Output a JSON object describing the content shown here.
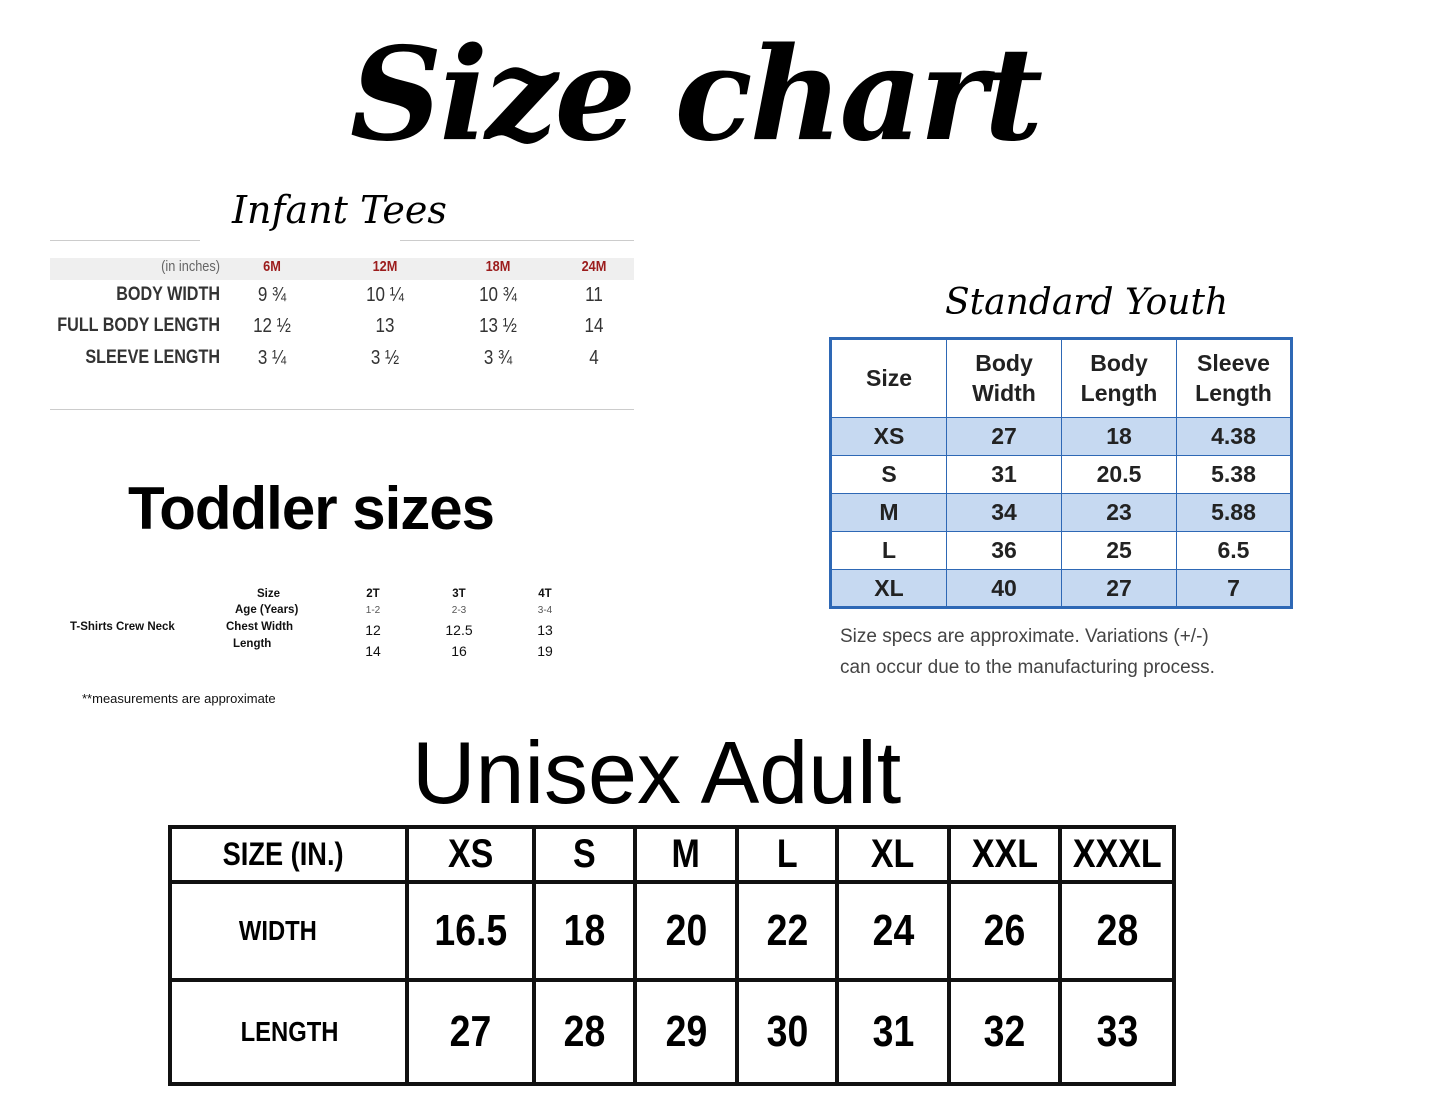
{
  "title": "Size chart",
  "infant": {
    "title": "Infant Tees",
    "unit_label": "(in inches)",
    "sizes": [
      "6M",
      "12M",
      "18M",
      "24M"
    ],
    "rows": [
      {
        "label": "BODY WIDTH",
        "values": [
          "9 ¾",
          "10 ¼",
          "10 ¾",
          "11"
        ]
      },
      {
        "label": "FULL BODY LENGTH",
        "values": [
          "12 ½",
          "13",
          "13 ½",
          "14"
        ]
      },
      {
        "label": "SLEEVE LENGTH",
        "values": [
          "3 ¼",
          "3 ½",
          "3 ¾",
          "4"
        ]
      }
    ],
    "accent": "#9b1c1c"
  },
  "toddler": {
    "title": "Toddler sizes",
    "product": "T-Shirts  Crew Neck",
    "rows": [
      {
        "label": "Size",
        "values": [
          "2T",
          "3T",
          "4T"
        ]
      },
      {
        "label": "Age (Years)",
        "values": [
          "1-2",
          "2-3",
          "3-4"
        ]
      },
      {
        "label": "Chest Width",
        "values": [
          "12",
          "12.5",
          "13"
        ]
      },
      {
        "label": "Length",
        "values": [
          "14",
          "16",
          "19"
        ]
      }
    ],
    "note": "**measurements are approximate"
  },
  "youth": {
    "title": "Standard Youth",
    "headers": [
      "Size",
      "Body Width",
      "Body Length",
      "Sleeve Length"
    ],
    "rows": [
      [
        "XS",
        "27",
        "18",
        "4.38"
      ],
      [
        "S",
        "31",
        "20.5",
        "5.38"
      ],
      [
        "M",
        "34",
        "23",
        "5.88"
      ],
      [
        "L",
        "36",
        "25",
        "6.5"
      ],
      [
        "XL",
        "40",
        "27",
        "7"
      ]
    ],
    "caption": [
      "Size specs are approximate. Variations (+/-)",
      "can occur due to the manufacturing process."
    ],
    "border_color": "#2e68b5",
    "stripe_color": "#c6d9f1"
  },
  "adult": {
    "title": "Unisex Adult",
    "header_label": "SIZE  (IN.)",
    "sizes": [
      "XS",
      "S",
      "M",
      "L",
      "XL",
      "XXL",
      "XXXL"
    ],
    "rows": [
      {
        "label": "WIDTH",
        "values": [
          "16.5",
          "18",
          "20",
          "22",
          "24",
          "26",
          "28"
        ]
      },
      {
        "label": "LENGTH",
        "values": [
          "27",
          "28",
          "29",
          "30",
          "31",
          "32",
          "33"
        ]
      }
    ]
  }
}
